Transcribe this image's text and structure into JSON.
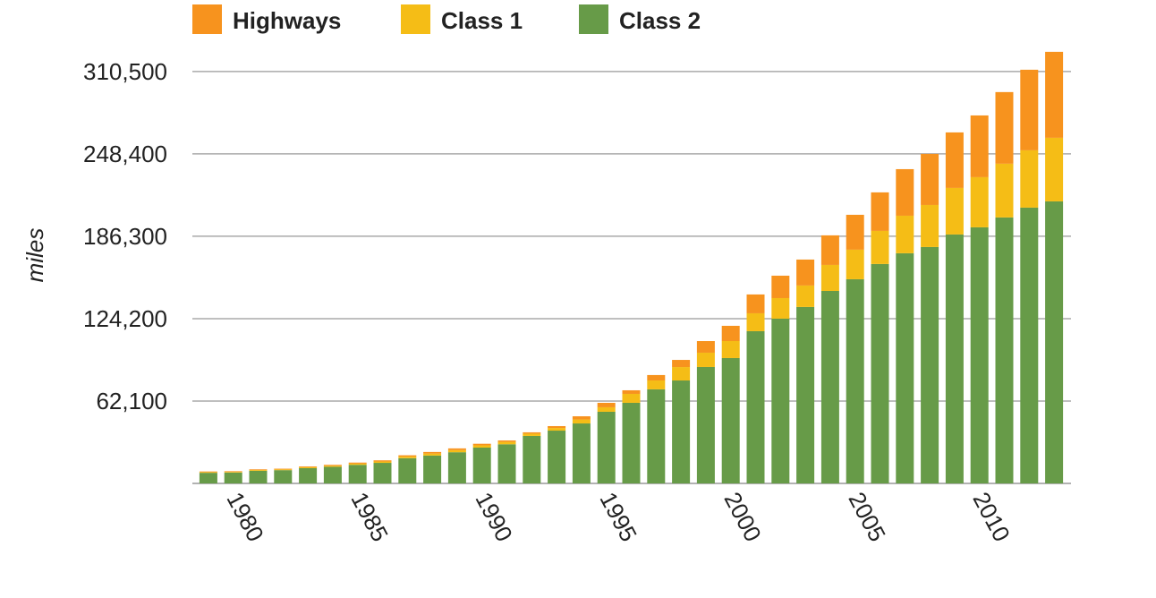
{
  "chart_data": {
    "type": "stacked_bar",
    "y_label": "miles",
    "categories": [
      null,
      1980,
      null,
      null,
      null,
      null,
      1985,
      null,
      null,
      null,
      null,
      1990,
      null,
      null,
      null,
      null,
      1995,
      null,
      null,
      null,
      null,
      2000,
      null,
      null,
      null,
      null,
      2005,
      null,
      null,
      null,
      null,
      2010,
      null,
      null,
      null
    ],
    "series": [
      {
        "name": "Class 2",
        "color": "#679b48",
        "values": [
          8000,
          8200,
          9500,
          10000,
          11500,
          12500,
          14000,
          15500,
          19000,
          21000,
          23500,
          27000,
          29500,
          35800,
          39800,
          45200,
          54000,
          60750,
          70900,
          77600,
          87750,
          94500,
          114750,
          124200,
          133000,
          145100,
          153900,
          165400,
          173500,
          178200,
          187650,
          193050,
          200500,
          207900,
          212600
        ]
      },
      {
        "name": "Class 1",
        "color": "#f5bd16",
        "values": [
          500,
          500,
          600,
          600,
          700,
          800,
          900,
          1000,
          1200,
          1500,
          1600,
          1700,
          1800,
          1700,
          2000,
          3000,
          3400,
          6750,
          6700,
          10100,
          10800,
          12800,
          13500,
          15500,
          16200,
          19600,
          22300,
          24950,
          28300,
          31700,
          35100,
          37800,
          40500,
          43200,
          47950
        ]
      },
      {
        "name": "Highways",
        "color": "#f7931e",
        "values": [
          500,
          500,
          500,
          500,
          600,
          700,
          800,
          900,
          1000,
          1200,
          1300,
          1200,
          1100,
          1000,
          1400,
          2400,
          3350,
          2700,
          4100,
          5400,
          8750,
          11500,
          14200,
          16900,
          19550,
          22300,
          26300,
          29050,
          35100,
          38500,
          41850,
          46550,
          54000,
          60750,
          64800
        ]
      }
    ],
    "legend_order": [
      "Highways",
      "Class 1",
      "Class 2"
    ],
    "ylim": [
      0,
      330000
    ],
    "yticks": [
      {
        "value": 62100,
        "label": "62,100"
      },
      {
        "value": 124200,
        "label": "124,200"
      },
      {
        "value": 186300,
        "label": "186,300"
      },
      {
        "value": 248400,
        "label": "248,400"
      },
      {
        "value": 310500,
        "label": "310,500"
      }
    ],
    "grid": true
  }
}
